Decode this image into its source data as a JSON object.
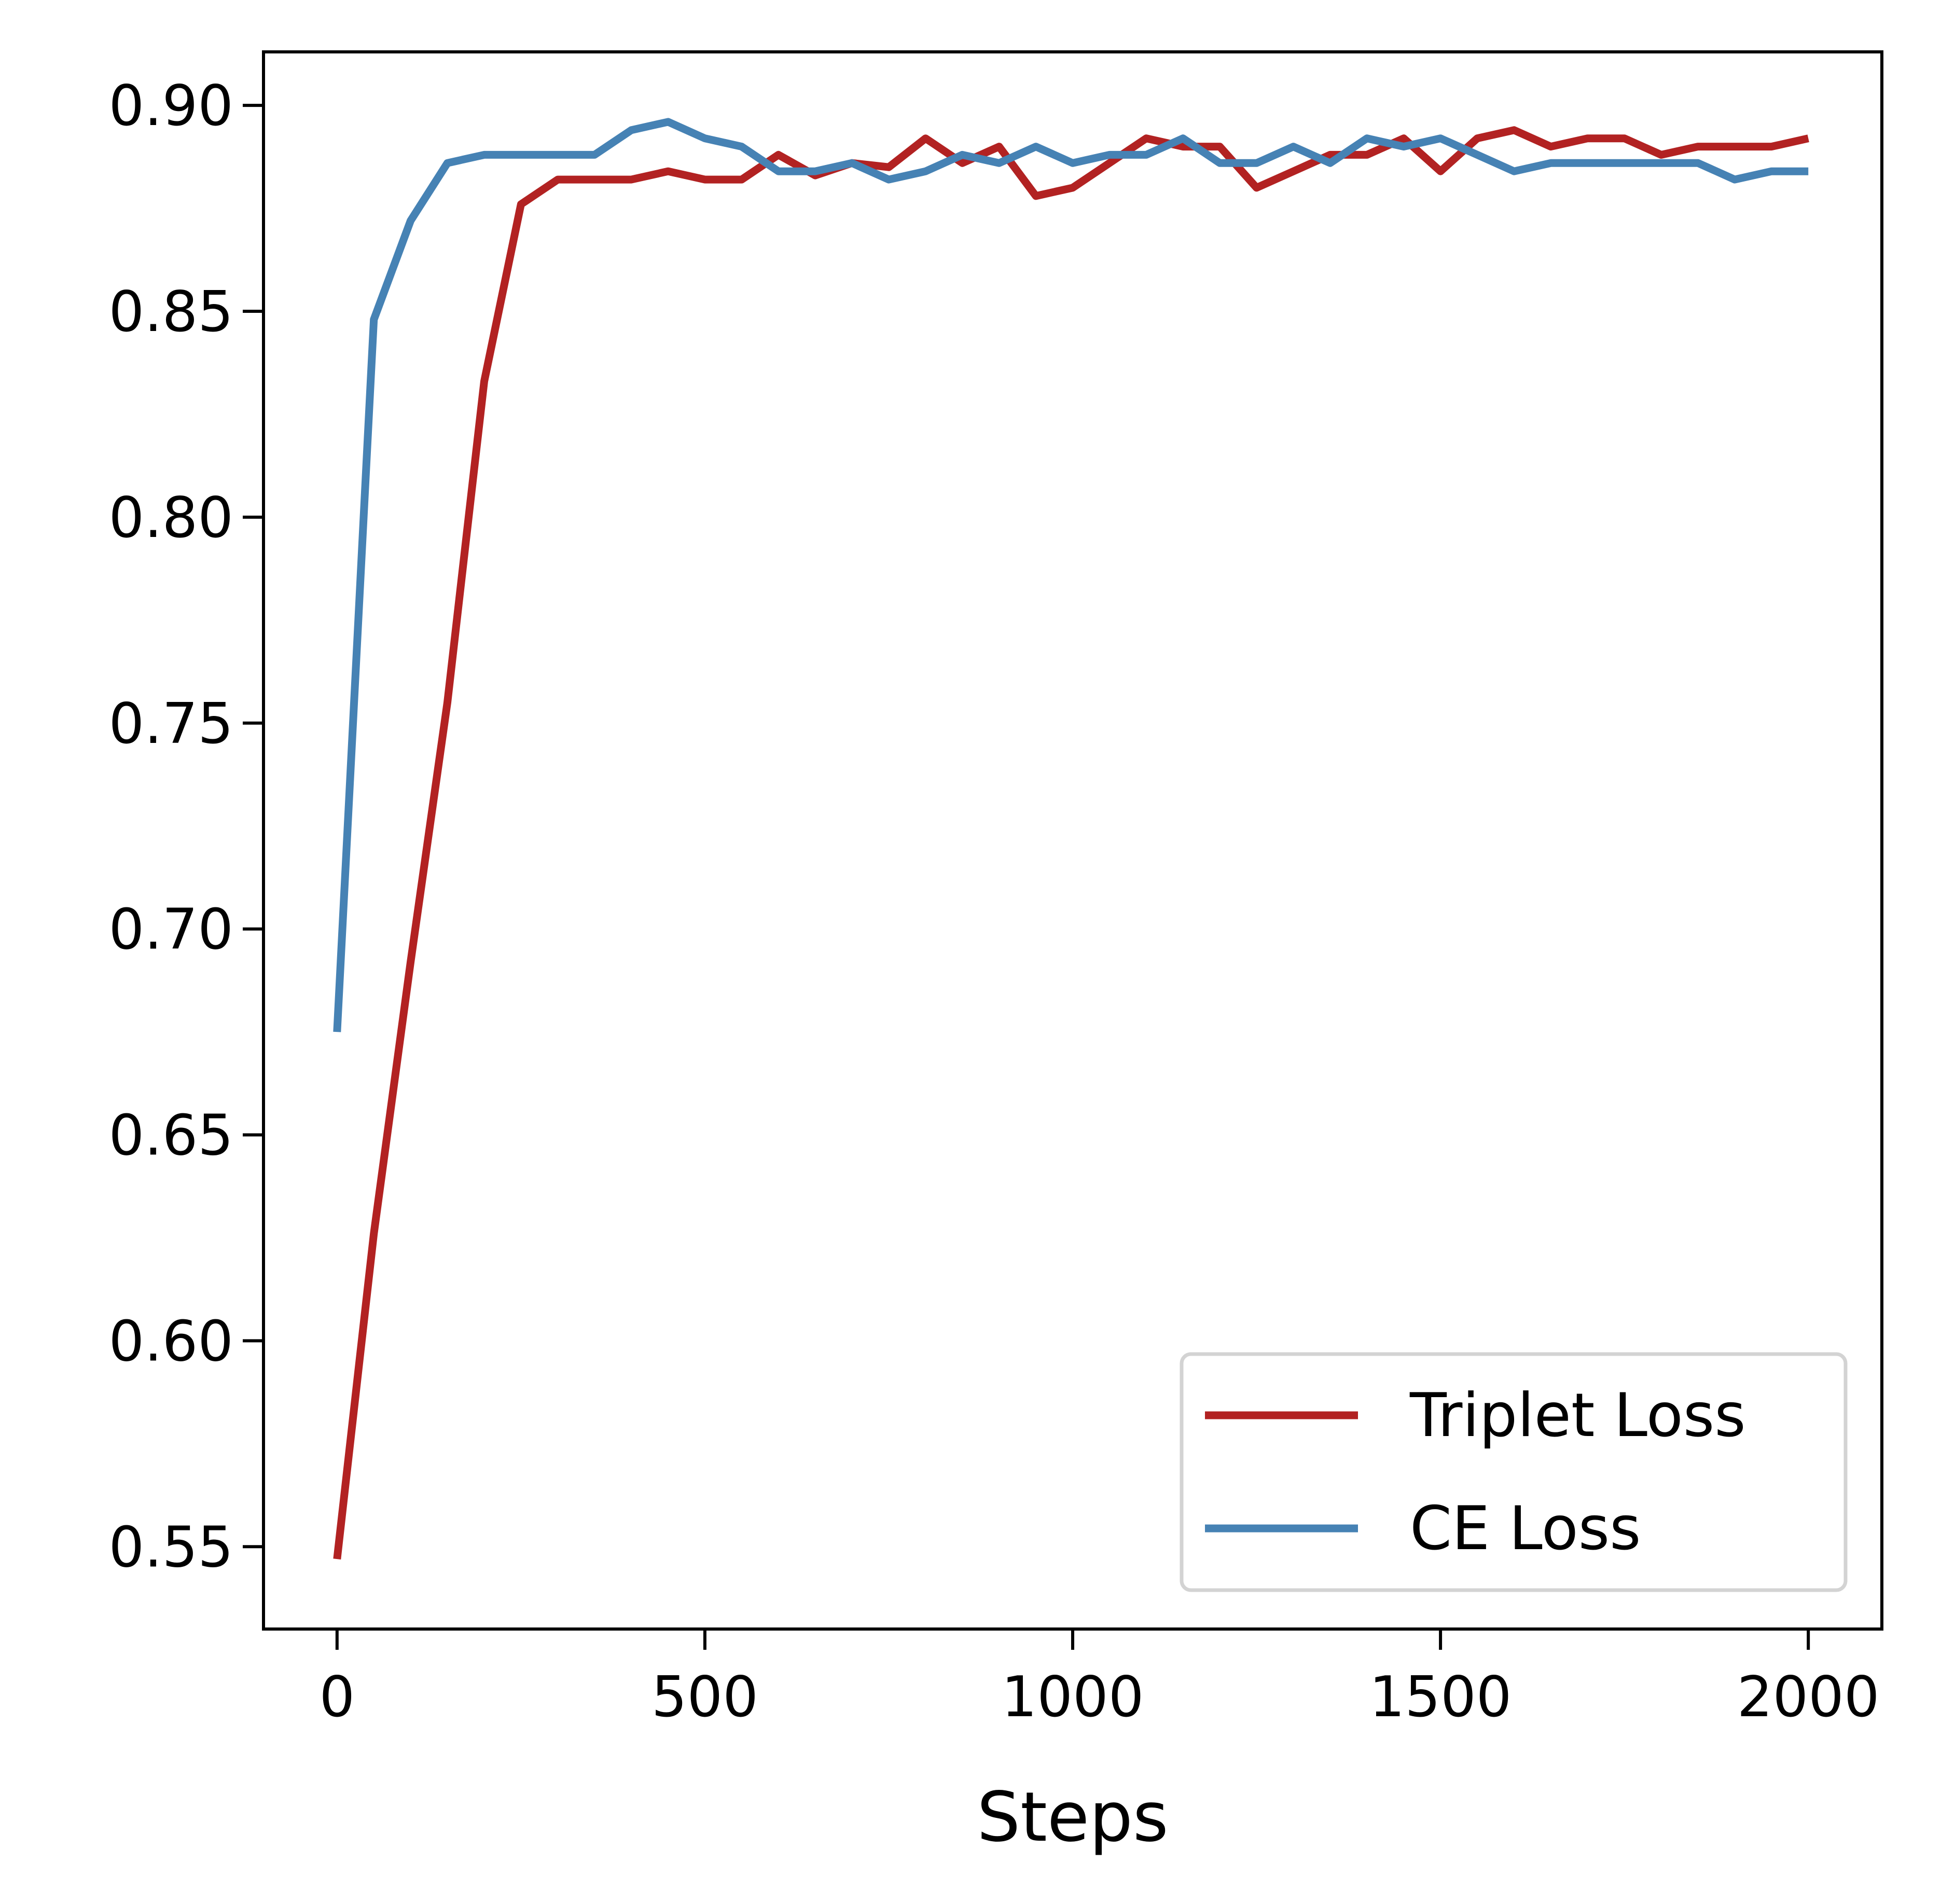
{
  "chart_data": {
    "type": "line",
    "title": "",
    "xlabel": "Steps",
    "ylabel": "",
    "xlim": [
      -100,
      2100
    ],
    "ylim": [
      0.53,
      0.913
    ],
    "xticks": [
      0,
      500,
      1000,
      1500,
      2000
    ],
    "xtick_labels": [
      "0",
      "500",
      "1000",
      "1500",
      "2000"
    ],
    "yticks": [
      0.55,
      0.6,
      0.65,
      0.7,
      0.75,
      0.8,
      0.85,
      0.9
    ],
    "ytick_labels": [
      "0.55",
      "0.60",
      "0.65",
      "0.70",
      "0.75",
      "0.80",
      "0.85",
      "0.90"
    ],
    "grid": false,
    "legend_position": "lower-right",
    "x": [
      0,
      50,
      100,
      150,
      200,
      250,
      300,
      350,
      400,
      450,
      500,
      550,
      600,
      650,
      700,
      750,
      800,
      850,
      900,
      950,
      1000,
      1050,
      1100,
      1150,
      1200,
      1250,
      1300,
      1350,
      1400,
      1450,
      1500,
      1550,
      1600,
      1650,
      1700,
      1750,
      1800,
      1850,
      1900,
      1950,
      2000
    ],
    "series": [
      {
        "name": "Triplet Loss",
        "color": "#b22222",
        "values": [
          0.547,
          0.626,
          0.692,
          0.755,
          0.833,
          0.876,
          0.882,
          0.882,
          0.882,
          0.884,
          0.882,
          0.882,
          0.888,
          0.883,
          0.886,
          0.885,
          0.892,
          0.886,
          0.89,
          0.878,
          0.88,
          0.886,
          0.892,
          0.89,
          0.89,
          0.88,
          0.884,
          0.888,
          0.888,
          0.892,
          0.884,
          0.892,
          0.894,
          0.89,
          0.892,
          0.892,
          0.888,
          0.89,
          0.89,
          0.89,
          0.892
        ]
      },
      {
        "name": "CE Loss",
        "color": "#4682b4",
        "values": [
          0.675,
          0.848,
          0.872,
          0.886,
          0.888,
          0.888,
          0.888,
          0.888,
          0.894,
          0.896,
          0.892,
          0.89,
          0.884,
          0.884,
          0.886,
          0.882,
          0.884,
          0.888,
          0.886,
          0.89,
          0.886,
          0.888,
          0.888,
          0.892,
          0.886,
          0.886,
          0.89,
          0.886,
          0.892,
          0.89,
          0.892,
          0.888,
          0.884,
          0.886,
          0.886,
          0.886,
          0.886,
          0.886,
          0.882,
          0.884,
          0.884
        ]
      }
    ]
  }
}
